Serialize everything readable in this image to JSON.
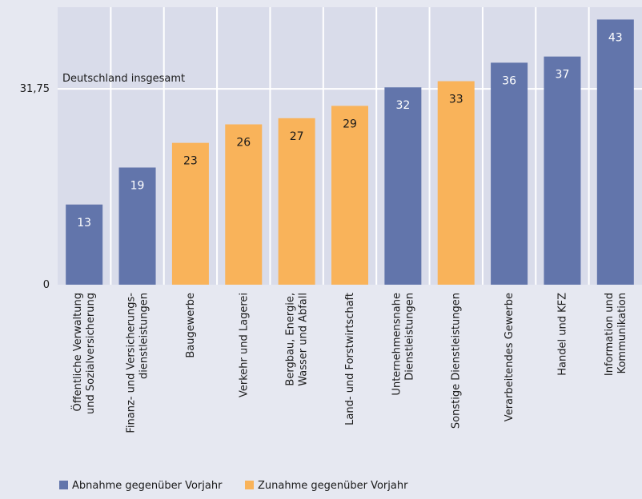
{
  "chart_data": {
    "type": "bar",
    "categories": [
      "Öffentliche Verwaltung\nund Sozialversicherung",
      "Finanz- und Versicherungs-\ndienstleistungen",
      "Baugewerbe",
      "Verkehr und Lagerei",
      "Bergbau, Energie,\nWasser und Abfall",
      "Land- und Forstwirtschaft",
      "Unternehmensnahe\nDienstleistungen",
      "Sonstige Dienstleistungen",
      "Verarbeitendes Gewerbe",
      "Handel und KFZ",
      "Information und\nKommunikation"
    ],
    "values": [
      13,
      19,
      23,
      26,
      27,
      29,
      32,
      33,
      36,
      37,
      43
    ],
    "colors": [
      "#6275ab",
      "#6275ab",
      "#f9b35a",
      "#f9b35a",
      "#f9b35a",
      "#f9b35a",
      "#6275ab",
      "#f9b35a",
      "#6275ab",
      "#6275ab",
      "#6275ab"
    ],
    "ylim": [
      0,
      45
    ],
    "yticks": [
      0,
      {
        "value": 31.75,
        "label": "31,75"
      }
    ],
    "annotation": "Deutschland insgesamt",
    "legend": [
      {
        "name": "Abnahme gegenüber Vorjahr",
        "color": "#6275ab"
      },
      {
        "name": "Zunahme gegenüber Vorjahr",
        "color": "#f9b35a"
      }
    ],
    "grid": true
  }
}
